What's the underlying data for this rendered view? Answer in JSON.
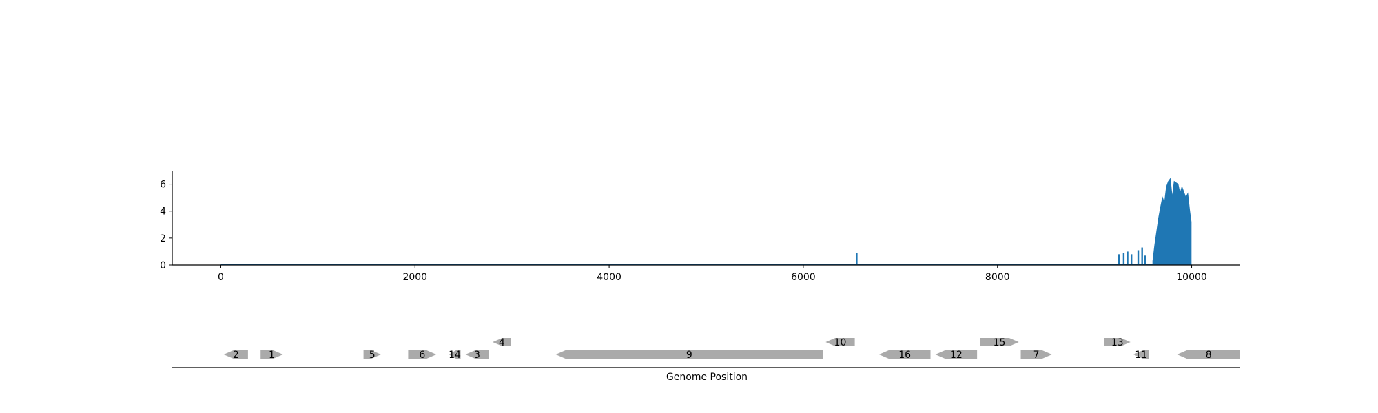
{
  "chart_data": [
    {
      "type": "area",
      "xlim": [
        -500,
        10500
      ],
      "ylim": [
        0,
        7
      ],
      "x_ticks": [
        0,
        2000,
        4000,
        6000,
        8000,
        10000
      ],
      "y_ticks": [
        0,
        2,
        4,
        6
      ],
      "color": "#1f77b4",
      "baseline": 0.05,
      "spikes": [
        {
          "x": 6550,
          "y": 0.9
        },
        {
          "x": 9250,
          "y": 0.8
        },
        {
          "x": 9300,
          "y": 0.9
        },
        {
          "x": 9340,
          "y": 1.0
        },
        {
          "x": 9380,
          "y": 0.8
        },
        {
          "x": 9450,
          "y": 1.1
        },
        {
          "x": 9490,
          "y": 1.3
        },
        {
          "x": 9520,
          "y": 0.7
        }
      ],
      "peak": [
        [
          9600,
          0.3
        ],
        [
          9620,
          1.5
        ],
        [
          9640,
          2.5
        ],
        [
          9660,
          3.5
        ],
        [
          9680,
          4.3
        ],
        [
          9700,
          5.0
        ],
        [
          9720,
          4.6
        ],
        [
          9740,
          5.8
        ],
        [
          9760,
          6.2
        ],
        [
          9780,
          6.4
        ],
        [
          9800,
          5.0
        ],
        [
          9820,
          6.2
        ],
        [
          9840,
          6.1
        ],
        [
          9860,
          6.0
        ],
        [
          9880,
          5.3
        ],
        [
          9900,
          5.8
        ],
        [
          9920,
          5.4
        ],
        [
          9940,
          5.0
        ],
        [
          9960,
          5.3
        ],
        [
          9980,
          4.0
        ],
        [
          9995,
          3.2
        ]
      ]
    },
    {
      "type": "gene-map",
      "xlabel": "Genome Position",
      "xlim": [
        -500,
        10500
      ],
      "color": "#aaaaaa",
      "genes": [
        {
          "label": "2",
          "start": 30,
          "end": 280,
          "strand": -1,
          "row": 0
        },
        {
          "label": "1",
          "start": 410,
          "end": 640,
          "strand": 1,
          "row": 0
        },
        {
          "label": "5",
          "start": 1470,
          "end": 1650,
          "strand": 1,
          "row": 0
        },
        {
          "label": "6",
          "start": 1930,
          "end": 2220,
          "strand": 1,
          "row": 0
        },
        {
          "label": "14",
          "start": 2350,
          "end": 2470,
          "strand": -1,
          "row": 0
        },
        {
          "label": "3",
          "start": 2520,
          "end": 2760,
          "strand": -1,
          "row": 0
        },
        {
          "label": "4",
          "start": 2800,
          "end": 2990,
          "strand": -1,
          "row": 1
        },
        {
          "label": "9",
          "start": 3450,
          "end": 6200,
          "strand": -1,
          "row": 0
        },
        {
          "label": "10",
          "start": 6230,
          "end": 6530,
          "strand": -1,
          "row": 1
        },
        {
          "label": "16",
          "start": 6780,
          "end": 7310,
          "strand": -1,
          "row": 0
        },
        {
          "label": "12",
          "start": 7360,
          "end": 7790,
          "strand": -1,
          "row": 0
        },
        {
          "label": "15",
          "start": 7820,
          "end": 8220,
          "strand": 1,
          "row": 1
        },
        {
          "label": "7",
          "start": 8240,
          "end": 8560,
          "strand": 1,
          "row": 0
        },
        {
          "label": "13",
          "start": 9100,
          "end": 9370,
          "strand": 1,
          "row": 1
        },
        {
          "label": "11",
          "start": 9400,
          "end": 9560,
          "strand": -1,
          "row": 0
        },
        {
          "label": "8",
          "start": 9850,
          "end": 10500,
          "strand": -1,
          "row": 0
        }
      ]
    }
  ]
}
